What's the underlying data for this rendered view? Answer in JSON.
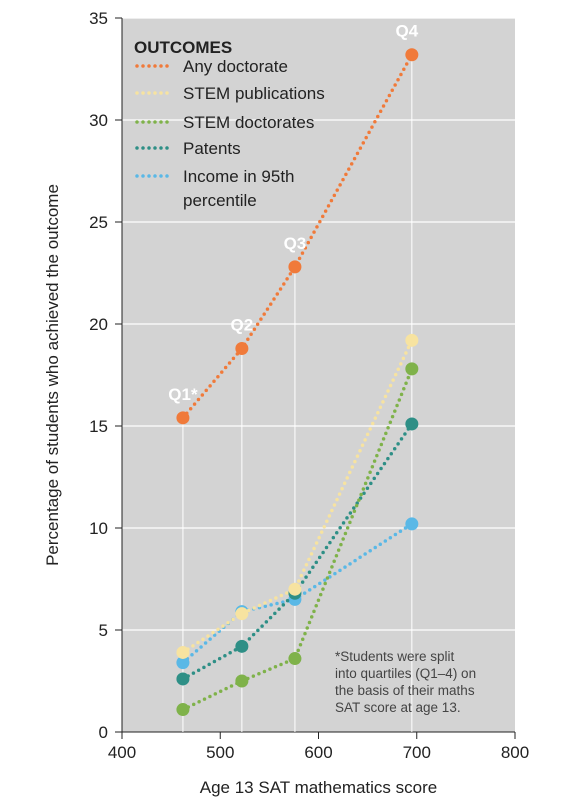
{
  "chart_data": {
    "type": "line",
    "xlabel": "Age 13 SAT mathematics score",
    "ylabel": "Percentage of students who achieved the outcome",
    "xlim": [
      400,
      800
    ],
    "ylim": [
      0,
      35
    ],
    "xticks": [
      400,
      500,
      600,
      700,
      800
    ],
    "yticks": [
      0,
      5,
      10,
      15,
      20,
      25,
      30,
      35
    ],
    "grid": "horizontal",
    "legend_title": "OUTCOMES",
    "legend_position": "top-left",
    "x": [
      462,
      522,
      576,
      695
    ],
    "series": [
      {
        "name": "Any doctorate",
        "color": "#f07a3a",
        "values": [
          15.4,
          18.8,
          22.8,
          33.2
        ]
      },
      {
        "name": "STEM publications",
        "color": "#f7e3a0",
        "values": [
          3.9,
          5.8,
          7.0,
          19.2
        ]
      },
      {
        "name": "STEM doctorates",
        "color": "#7fb24a",
        "values": [
          1.1,
          2.5,
          3.6,
          17.8
        ]
      },
      {
        "name": "Patents",
        "color": "#2e8f86",
        "values": [
          2.6,
          4.2,
          6.8,
          15.1
        ]
      },
      {
        "name": "Income in 95th percentile",
        "color": "#5ab8e6",
        "values": [
          3.4,
          5.9,
          6.5,
          10.2
        ]
      }
    ],
    "legend_labels": [
      [
        "Any doctorate"
      ],
      [
        "STEM publications"
      ],
      [
        "STEM doctorates"
      ],
      [
        "Patents"
      ],
      [
        "Income in 95th",
        "percentile"
      ]
    ],
    "quartile_labels": [
      "Q1*",
      "Q2",
      "Q3",
      "Q4"
    ],
    "footnote": [
      "*Students were split",
      "into quartiles (Q1–4) on",
      "the basis of their maths",
      "SAT score at age 13."
    ],
    "colors": {
      "plot_bg": "#d3d3d3",
      "grid": "#ffffff",
      "axis": "#222222",
      "text": "#222222",
      "footnote": "#444444"
    }
  }
}
